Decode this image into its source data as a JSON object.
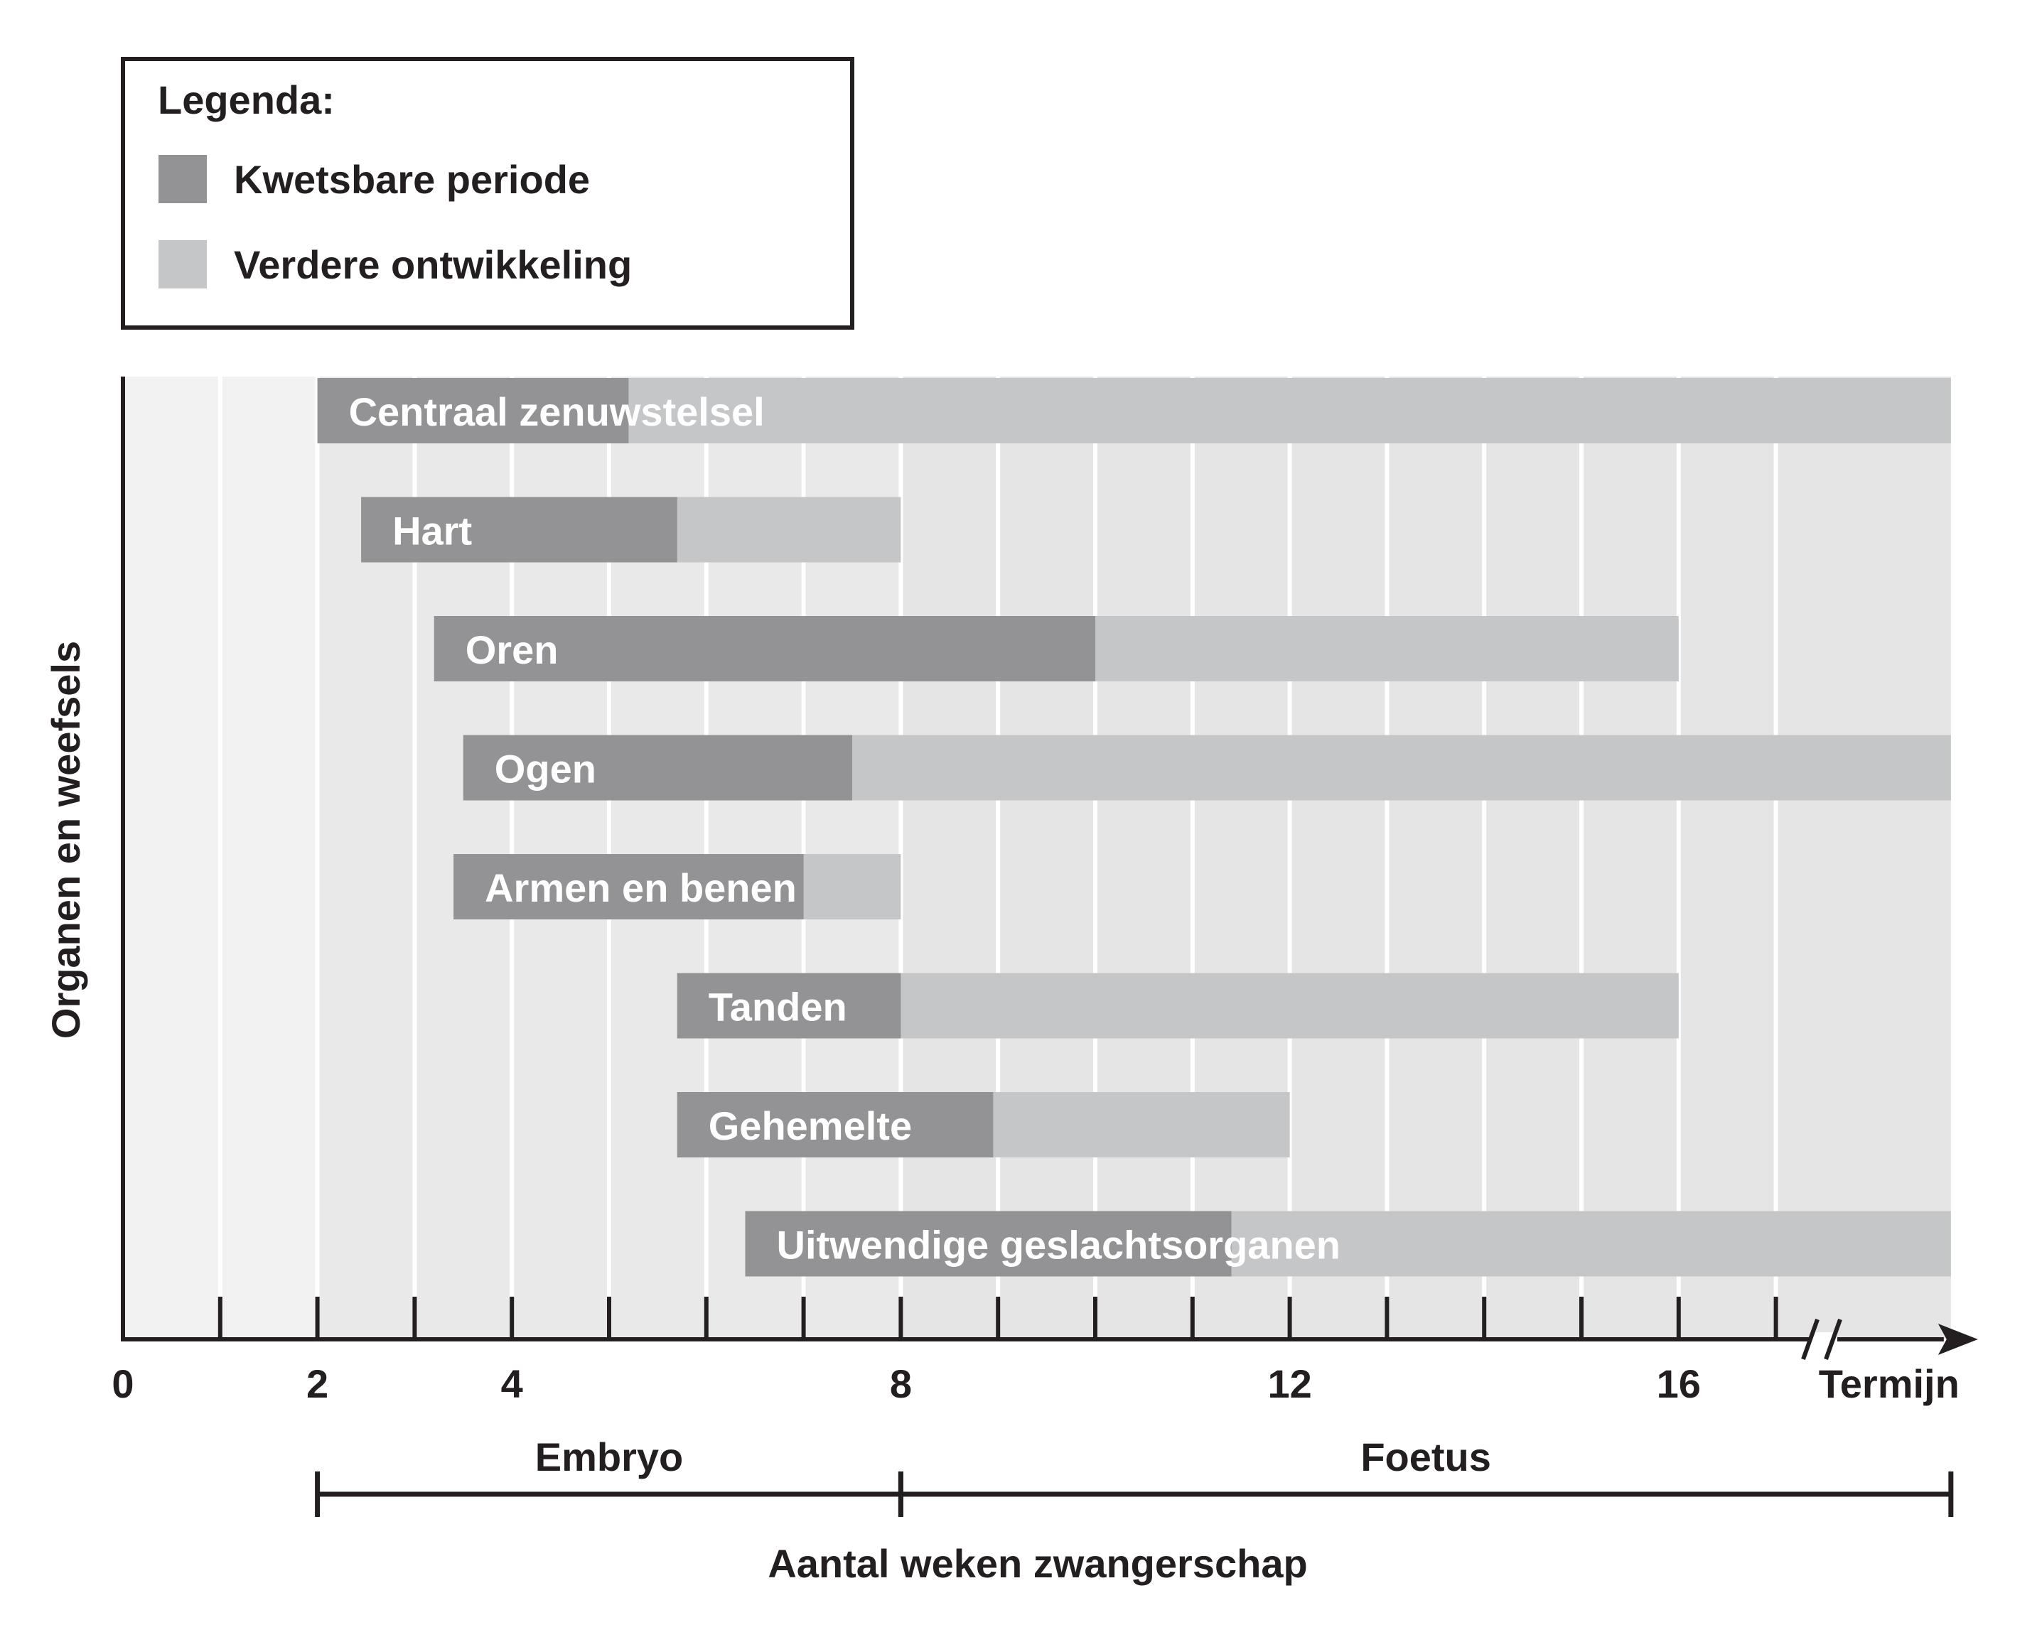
{
  "chart_data": {
    "type": "bar",
    "subtype": "gantt",
    "title": "",
    "xlabel": "Aantal weken zwangerschap",
    "ylabel": "Organen en weefsels",
    "xlim": [
      0,
      18.8
    ],
    "x_ticks": [
      0,
      1,
      2,
      3,
      4,
      5,
      6,
      7,
      8,
      9,
      10,
      11,
      12,
      13,
      14,
      15,
      16,
      17
    ],
    "x_tick_labels": [
      {
        "value": 0,
        "label": "0"
      },
      {
        "value": 2,
        "label": "2"
      },
      {
        "value": 4,
        "label": "4"
      },
      {
        "value": 8,
        "label": "8"
      },
      {
        "value": 12,
        "label": "12"
      },
      {
        "value": 16,
        "label": "16"
      },
      {
        "value": 18.8,
        "label": "Termijn"
      }
    ],
    "axis_break_at": 17.5,
    "legend": {
      "title": "Legenda:",
      "placement": "top-left",
      "items": [
        {
          "label": "Kwetsbare periode",
          "color": "#939396"
        },
        {
          "label": "Verdere ontwikkeling",
          "color": "#c5c6c8"
        }
      ]
    },
    "background_bands": [
      {
        "from": 0,
        "to": 2,
        "color": "#f2f2f2"
      },
      {
        "from": 2,
        "to": 8,
        "color": "#e9e9ea"
      },
      {
        "from": 8,
        "to": 18.8,
        "color": "#e5e5e6"
      }
    ],
    "grid": true,
    "series": [
      {
        "name": "Kwetsbare periode",
        "color": "#939396"
      },
      {
        "name": "Verdere ontwikkeling",
        "color": "#c5c6c8"
      }
    ],
    "bars": [
      {
        "label": "Centraal zenuwstelsel",
        "start": 2.0,
        "vulnerable_end": 5.2,
        "end": 18.8
      },
      {
        "label": "Hart",
        "start": 2.45,
        "vulnerable_end": 5.7,
        "end": 8.0
      },
      {
        "label": "Oren",
        "start": 3.2,
        "vulnerable_end": 10.0,
        "end": 16.0
      },
      {
        "label": "Ogen",
        "start": 3.5,
        "vulnerable_end": 7.5,
        "end": 18.8
      },
      {
        "label": "Armen en benen",
        "start": 3.4,
        "vulnerable_end": 7.0,
        "end": 8.0
      },
      {
        "label": "Tanden",
        "start": 5.7,
        "vulnerable_end": 8.0,
        "end": 16.0
      },
      {
        "label": "Gehemelte",
        "start": 5.7,
        "vulnerable_end": 8.95,
        "end": 12.0
      },
      {
        "label": "Uitwendige geslachtsorganen",
        "start": 6.4,
        "vulnerable_end": 11.4,
        "end": 18.8
      }
    ],
    "phases": [
      {
        "label": "Embryo",
        "from": 2,
        "to": 8
      },
      {
        "label": "Foetus",
        "from": 8,
        "to": 18.8
      }
    ]
  }
}
